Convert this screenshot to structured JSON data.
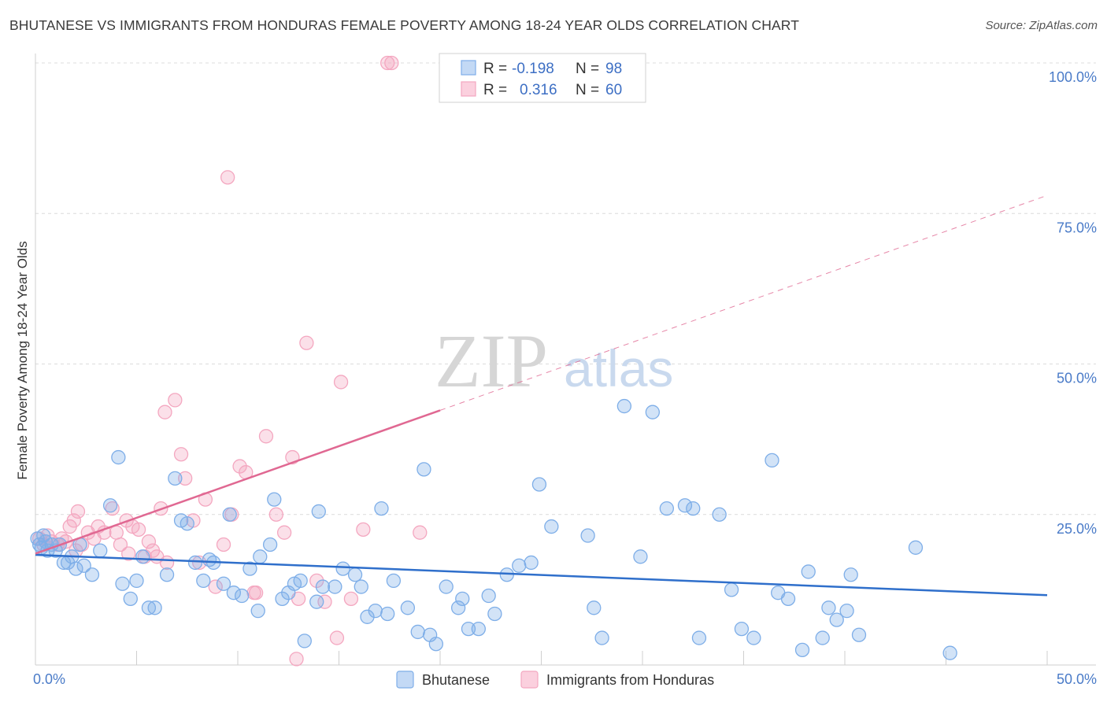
{
  "title": "BHUTANESE VS IMMIGRANTS FROM HONDURAS FEMALE POVERTY AMONG 18-24 YEAR OLDS CORRELATION CHART",
  "source": "Source: ZipAtlas.com",
  "watermark": {
    "zip": "ZIP",
    "atlas": "atlas"
  },
  "chart_data": {
    "type": "scatter",
    "title": "BHUTANESE VS IMMIGRANTS FROM HONDURAS FEMALE POVERTY AMONG 18-24 YEAR OLDS CORRELATION CHART",
    "xlabel": "",
    "ylabel": "Female Poverty Among 18-24 Year Olds",
    "xlim": [
      0,
      50
    ],
    "ylim": [
      0,
      100
    ],
    "x_tick_labels": {
      "min": "0.0%",
      "max": "50.0%"
    },
    "y_ticks": [
      {
        "value": 25,
        "label": "25.0%"
      },
      {
        "value": 50,
        "label": "50.0%"
      },
      {
        "value": 75,
        "label": "75.0%"
      },
      {
        "value": 100,
        "label": "100.0%"
      }
    ],
    "grid": true,
    "legend_position": "top-center",
    "stats": [
      {
        "r_label": "R =",
        "r": "-0.198",
        "n_label": "N =",
        "n": "98"
      },
      {
        "r_label": "R =",
        "r": " 0.316",
        "n_label": "N =",
        "n": "60"
      }
    ],
    "series": [
      {
        "name": "Bhutanese",
        "color": "#7eaee8",
        "line_color": "#2f6fcb",
        "trend": {
          "x0": 0,
          "y0": 18.3,
          "x1": 50,
          "y1": 11.6,
          "dashed_from": null
        },
        "points": [
          [
            0.1,
            21
          ],
          [
            0.2,
            20
          ],
          [
            0.3,
            19.5
          ],
          [
            0.4,
            21.5
          ],
          [
            0.5,
            20.5
          ],
          [
            0.6,
            19
          ],
          [
            0.8,
            20
          ],
          [
            1.0,
            19
          ],
          [
            1.2,
            20
          ],
          [
            1.4,
            17
          ],
          [
            1.6,
            17
          ],
          [
            1.8,
            18
          ],
          [
            2.0,
            16
          ],
          [
            2.2,
            20
          ],
          [
            2.4,
            16.5
          ],
          [
            2.8,
            15
          ],
          [
            3.2,
            19
          ],
          [
            3.7,
            26.5
          ],
          [
            4.1,
            34.5
          ],
          [
            4.3,
            13.5
          ],
          [
            4.7,
            11
          ],
          [
            5.0,
            14
          ],
          [
            5.3,
            18
          ],
          [
            5.6,
            9.5
          ],
          [
            5.9,
            9.5
          ],
          [
            6.5,
            15
          ],
          [
            6.9,
            31
          ],
          [
            7.2,
            24
          ],
          [
            7.5,
            23.5
          ],
          [
            7.9,
            17
          ],
          [
            8.3,
            14
          ],
          [
            8.6,
            17.5
          ],
          [
            8.8,
            17
          ],
          [
            9.3,
            13.5
          ],
          [
            9.6,
            25
          ],
          [
            9.8,
            12
          ],
          [
            10.2,
            11.5
          ],
          [
            10.6,
            16
          ],
          [
            11.0,
            9
          ],
          [
            11.1,
            18
          ],
          [
            11.6,
            20
          ],
          [
            11.8,
            27.5
          ],
          [
            12.2,
            11
          ],
          [
            12.5,
            12
          ],
          [
            12.8,
            13.5
          ],
          [
            13.1,
            14
          ],
          [
            13.3,
            4
          ],
          [
            13.9,
            10.5
          ],
          [
            14.0,
            25.5
          ],
          [
            14.2,
            13
          ],
          [
            14.8,
            13
          ],
          [
            15.2,
            16
          ],
          [
            15.8,
            15
          ],
          [
            16.1,
            13
          ],
          [
            16.4,
            8
          ],
          [
            16.8,
            9
          ],
          [
            17.1,
            26
          ],
          [
            17.4,
            8.5
          ],
          [
            17.7,
            14
          ],
          [
            18.4,
            9.5
          ],
          [
            18.9,
            5.5
          ],
          [
            19.2,
            32.5
          ],
          [
            19.5,
            5
          ],
          [
            19.8,
            3.5
          ],
          [
            20.3,
            13
          ],
          [
            20.9,
            9.5
          ],
          [
            21.1,
            11
          ],
          [
            21.4,
            6
          ],
          [
            21.9,
            6
          ],
          [
            22.4,
            11.5
          ],
          [
            22.7,
            8.5
          ],
          [
            23.3,
            15
          ],
          [
            23.9,
            16.5
          ],
          [
            24.5,
            17
          ],
          [
            24.9,
            30
          ],
          [
            25.5,
            23
          ],
          [
            27.3,
            21.5
          ],
          [
            27.6,
            9.5
          ],
          [
            28.0,
            4.5
          ],
          [
            29.1,
            43
          ],
          [
            29.9,
            18
          ],
          [
            30.5,
            42
          ],
          [
            31.2,
            26
          ],
          [
            32.1,
            26.5
          ],
          [
            32.5,
            26
          ],
          [
            32.8,
            4.5
          ],
          [
            33.8,
            25
          ],
          [
            34.4,
            12.5
          ],
          [
            34.9,
            6
          ],
          [
            35.5,
            4.5
          ],
          [
            36.4,
            34
          ],
          [
            36.7,
            12
          ],
          [
            37.2,
            11
          ],
          [
            37.9,
            2.5
          ],
          [
            38.2,
            15.5
          ],
          [
            38.9,
            4.5
          ],
          [
            39.2,
            9.5
          ],
          [
            39.6,
            7.5
          ],
          [
            40.1,
            9
          ],
          [
            40.3,
            15
          ],
          [
            40.7,
            5
          ],
          [
            43.5,
            19.5
          ],
          [
            45.2,
            2
          ]
        ]
      },
      {
        "name": "Immigrants from Honduras",
        "color": "#f4a7c0",
        "line_color": "#e06892",
        "trend": {
          "x0": 0,
          "y0": 18.5,
          "x1": 50,
          "y1": 78,
          "dashed_from": 20
        },
        "points": [
          [
            0.2,
            21
          ],
          [
            0.4,
            20
          ],
          [
            0.6,
            21.5
          ],
          [
            0.8,
            20.5
          ],
          [
            1.1,
            20
          ],
          [
            1.3,
            21
          ],
          [
            1.5,
            20.5
          ],
          [
            1.7,
            23
          ],
          [
            1.9,
            24
          ],
          [
            2.1,
            25.5
          ],
          [
            2.3,
            20
          ],
          [
            2.6,
            22
          ],
          [
            2.9,
            21
          ],
          [
            3.1,
            23
          ],
          [
            3.4,
            22
          ],
          [
            3.8,
            26
          ],
          [
            4.0,
            22
          ],
          [
            4.2,
            20
          ],
          [
            4.5,
            24
          ],
          [
            4.8,
            23
          ],
          [
            5.1,
            22.5
          ],
          [
            5.4,
            18
          ],
          [
            5.8,
            19
          ],
          [
            6.0,
            18
          ],
          [
            6.2,
            26
          ],
          [
            6.4,
            42
          ],
          [
            6.9,
            44
          ],
          [
            7.2,
            35
          ],
          [
            7.4,
            31
          ],
          [
            7.8,
            24
          ],
          [
            8.1,
            17
          ],
          [
            8.4,
            27.5
          ],
          [
            8.9,
            13
          ],
          [
            9.3,
            20
          ],
          [
            9.7,
            25
          ],
          [
            10.1,
            33
          ],
          [
            10.4,
            32
          ],
          [
            10.9,
            12
          ],
          [
            11.4,
            38
          ],
          [
            11.9,
            25
          ],
          [
            12.3,
            22
          ],
          [
            12.7,
            34.5
          ],
          [
            13.0,
            11
          ],
          [
            13.4,
            53.5
          ],
          [
            13.9,
            14
          ],
          [
            14.3,
            10.5
          ],
          [
            14.9,
            4.5
          ],
          [
            15.1,
            47
          ],
          [
            15.6,
            11
          ],
          [
            16.2,
            22.5
          ],
          [
            17.4,
            100
          ],
          [
            17.6,
            100
          ],
          [
            19.0,
            22
          ],
          [
            9.5,
            81
          ],
          [
            12.9,
            1
          ],
          [
            6.5,
            17
          ],
          [
            5.6,
            20.5
          ],
          [
            10.8,
            12
          ],
          [
            2.0,
            19
          ],
          [
            4.6,
            18.5
          ]
        ]
      }
    ]
  },
  "legend": {
    "items": [
      {
        "label": "Bhutanese",
        "color": "#7eaee8"
      },
      {
        "label": "Immigrants from Honduras",
        "color": "#f4a7c0"
      }
    ]
  }
}
